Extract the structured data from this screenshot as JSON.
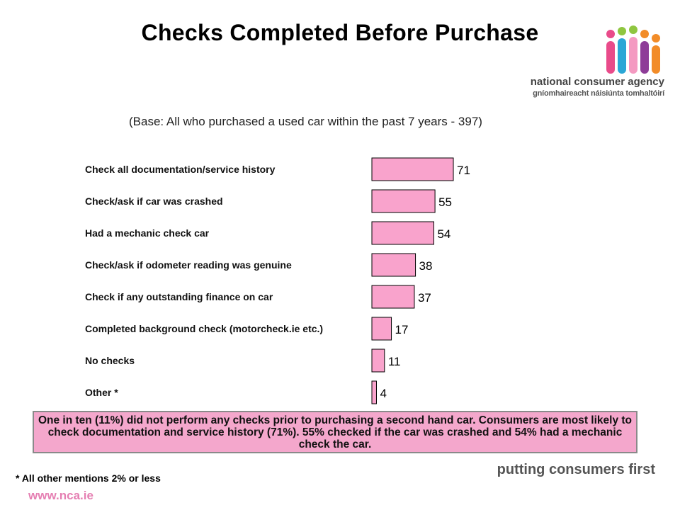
{
  "page": {
    "title": "Checks Completed Before Purchase",
    "subtitle": "(Base: All who purchased a used car within the past 7 years - 397)",
    "logo": {
      "name": "national consumer agency",
      "irish": "gníomhaireacht náisiúnta tomhaltóirí"
    },
    "callout": "One in ten (11%) did not perform any checks prior to purchasing a second hand car. Consumers are most likely to check documentation and service history (71%). 55% checked if the car was crashed and 54% had a mechanic check the car.",
    "footnote": "* All other mentions 2% or less",
    "url": "www.nca.ie",
    "tagline": "putting consumers first"
  },
  "colors": {
    "bar": "#f9a3cc",
    "bar_stroke": "#000000",
    "callout_bg": "#f4a7cc",
    "accent_pink": "#e57fb2"
  },
  "chart_data": {
    "type": "bar",
    "orientation": "horizontal",
    "title": "Checks Completed Before Purchase",
    "categories": [
      "Check all documentation/service history",
      "Check/ask if car was crashed",
      "Had a mechanic check car",
      "Check/ask if odometer reading was genuine",
      "Check if any outstanding finance on car",
      "Completed background check (motorcheck.ie etc.)",
      "No checks",
      "Other *"
    ],
    "values": [
      71,
      55,
      54,
      38,
      37,
      17,
      11,
      4
    ],
    "xlim": [
      0,
      100
    ],
    "grid": false,
    "legend": "none"
  }
}
